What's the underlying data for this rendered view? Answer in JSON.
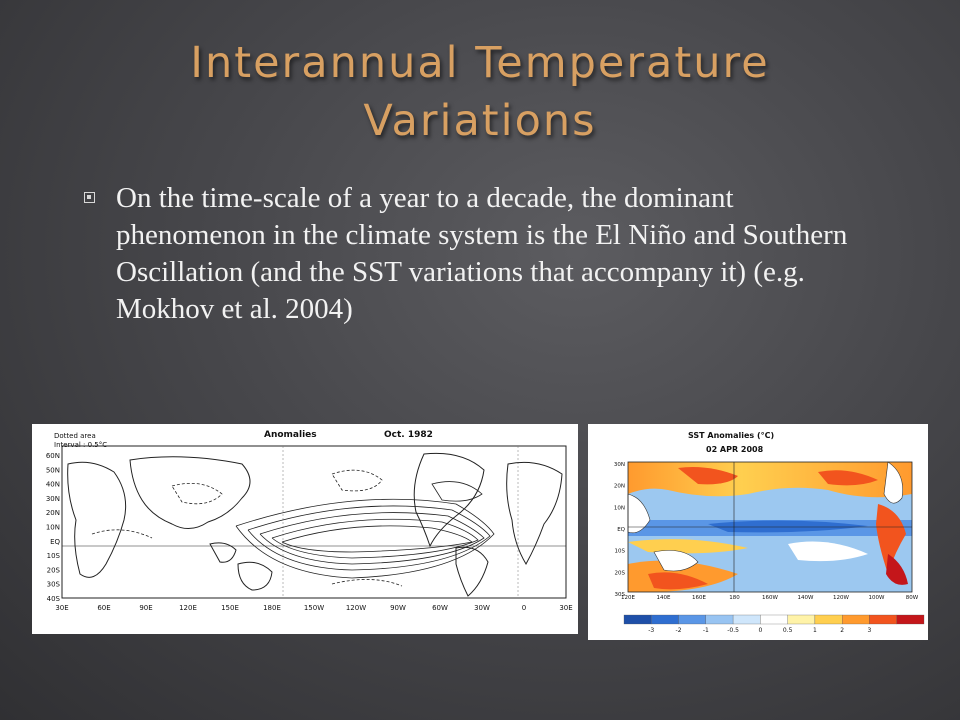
{
  "slide": {
    "title_line1": "Interannual Temperature",
    "title_line2": "Variations",
    "bullet": "On the time-scale of a year to a decade, the dominant phenomenon in the climate system is the El Niño and Southern Oscillation (and the SST variations that accompany it) (e.g. Mokhov et al. 2004)"
  },
  "figure_left": {
    "title": "Anomalies",
    "date": "Oct. 1982",
    "note_line1": "Dotted area",
    "note_line2": "Interval : 0.5°C",
    "lat_labels": [
      "60N",
      "50N",
      "40N",
      "30N",
      "20N",
      "10N",
      "EQ",
      "10S",
      "20S",
      "30S",
      "40S"
    ],
    "lon_labels": [
      "30E",
      "60E",
      "90E",
      "120E",
      "150E",
      "180E",
      "150W",
      "120W",
      "90W",
      "60W",
      "30W",
      "0",
      "30E"
    ]
  },
  "figure_right": {
    "title": "SST Anomalies (°C)",
    "date": "02 APR 2008",
    "lat_labels": [
      "30N",
      "20N",
      "10N",
      "EQ",
      "10S",
      "20S",
      "30S"
    ],
    "lon_labels": [
      "120E",
      "140E",
      "160E",
      "180",
      "160W",
      "140W",
      "120W",
      "100W",
      "80W"
    ],
    "colorbar_ticks": [
      "-3",
      "-2",
      "-1",
      "-0.5",
      "0",
      "0.5",
      "1",
      "2",
      "3"
    ],
    "colorbar_colors": [
      "#1e4fa8",
      "#2f6ed0",
      "#5a96e6",
      "#98c4f2",
      "#cfe6fb",
      "#ffffff",
      "#fff3a8",
      "#ffcf4f",
      "#ff9a2e",
      "#f2541e",
      "#c4161a"
    ]
  }
}
